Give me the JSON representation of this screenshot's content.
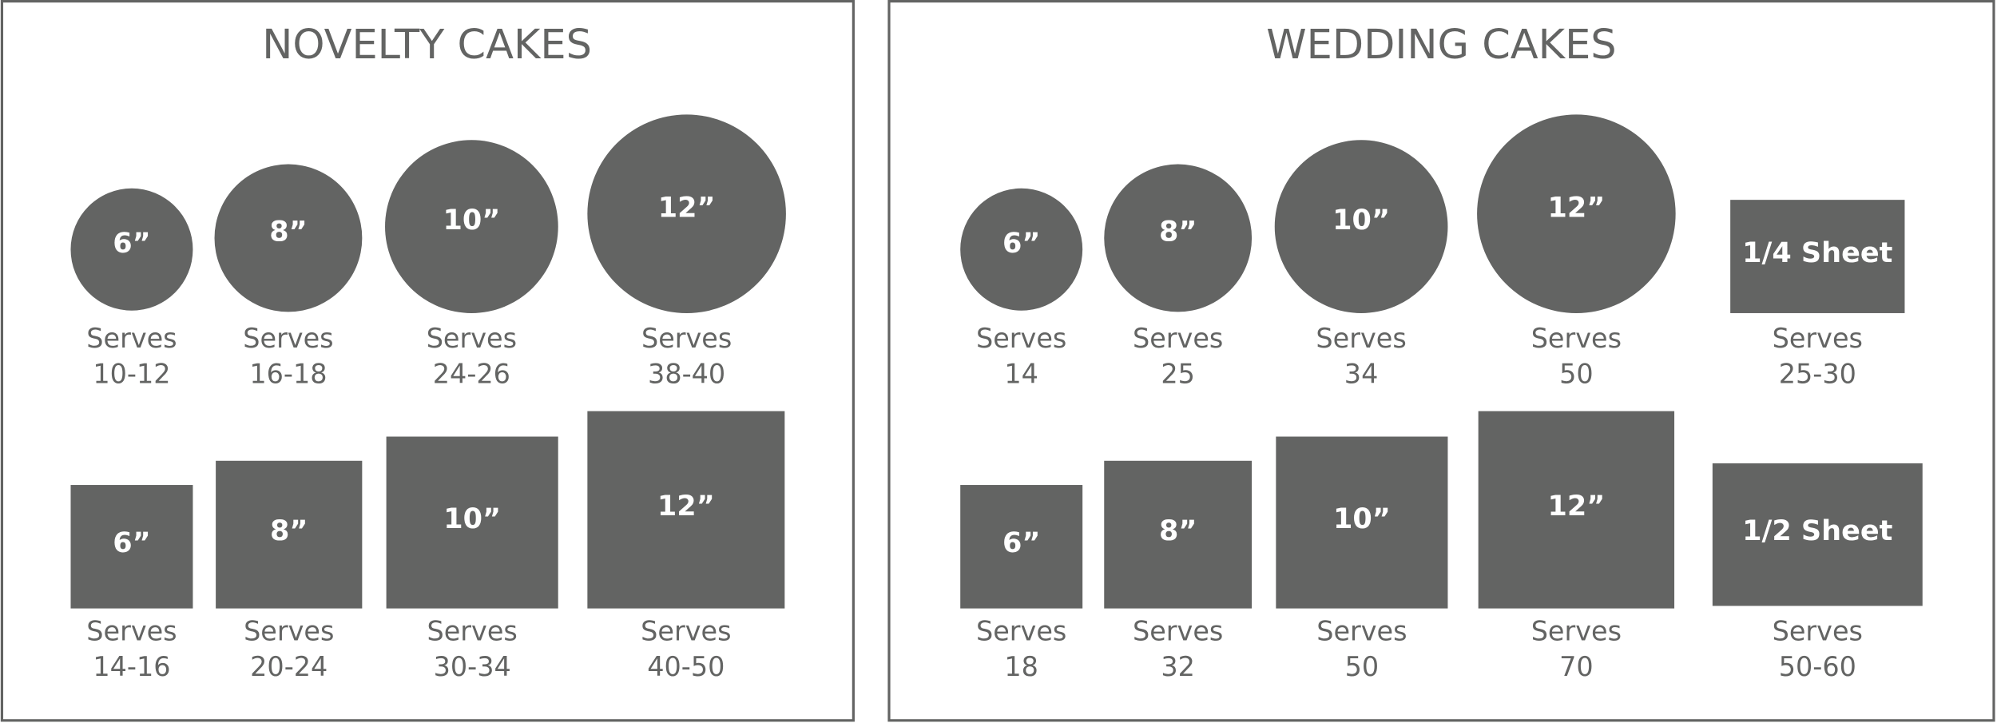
{
  "panels": [
    {
      "title": "NOVELTY CAKES",
      "rows": [
        [
          {
            "label": "6”",
            "caption": "Serves",
            "serves": "10-12"
          },
          {
            "label": "8”",
            "caption": "Serves",
            "serves": "16-18"
          },
          {
            "label": "10”",
            "caption": "Serves",
            "serves": "24-26"
          },
          {
            "label": "12”",
            "caption": "Serves",
            "serves": "38-40"
          }
        ],
        [
          {
            "label": "6”",
            "caption": "Serves",
            "serves": "14-16"
          },
          {
            "label": "8”",
            "caption": "Serves",
            "serves": "20-24"
          },
          {
            "label": "10”",
            "caption": "Serves",
            "serves": "30-34"
          },
          {
            "label": "12”",
            "caption": "Serves",
            "serves": "40-50"
          }
        ]
      ]
    },
    {
      "title": "WEDDING CAKES",
      "rows": [
        [
          {
            "label": "6”",
            "caption": "Serves",
            "serves": "14"
          },
          {
            "label": "8”",
            "caption": "Serves",
            "serves": "25"
          },
          {
            "label": "10”",
            "caption": "Serves",
            "serves": "34"
          },
          {
            "label": "12”",
            "caption": "Serves",
            "serves": "50"
          },
          {
            "label": "1/4 Sheet",
            "caption": "Serves",
            "serves": "25-30"
          }
        ],
        [
          {
            "label": "6”",
            "caption": "Serves",
            "serves": "18"
          },
          {
            "label": "8”",
            "caption": "Serves",
            "serves": "32"
          },
          {
            "label": "10”",
            "caption": "Serves",
            "serves": "50"
          },
          {
            "label": "12”",
            "caption": "Serves",
            "serves": "70"
          },
          {
            "label": "1/2 Sheet",
            "caption": "Serves",
            "serves": "50-60"
          }
        ]
      ]
    }
  ]
}
